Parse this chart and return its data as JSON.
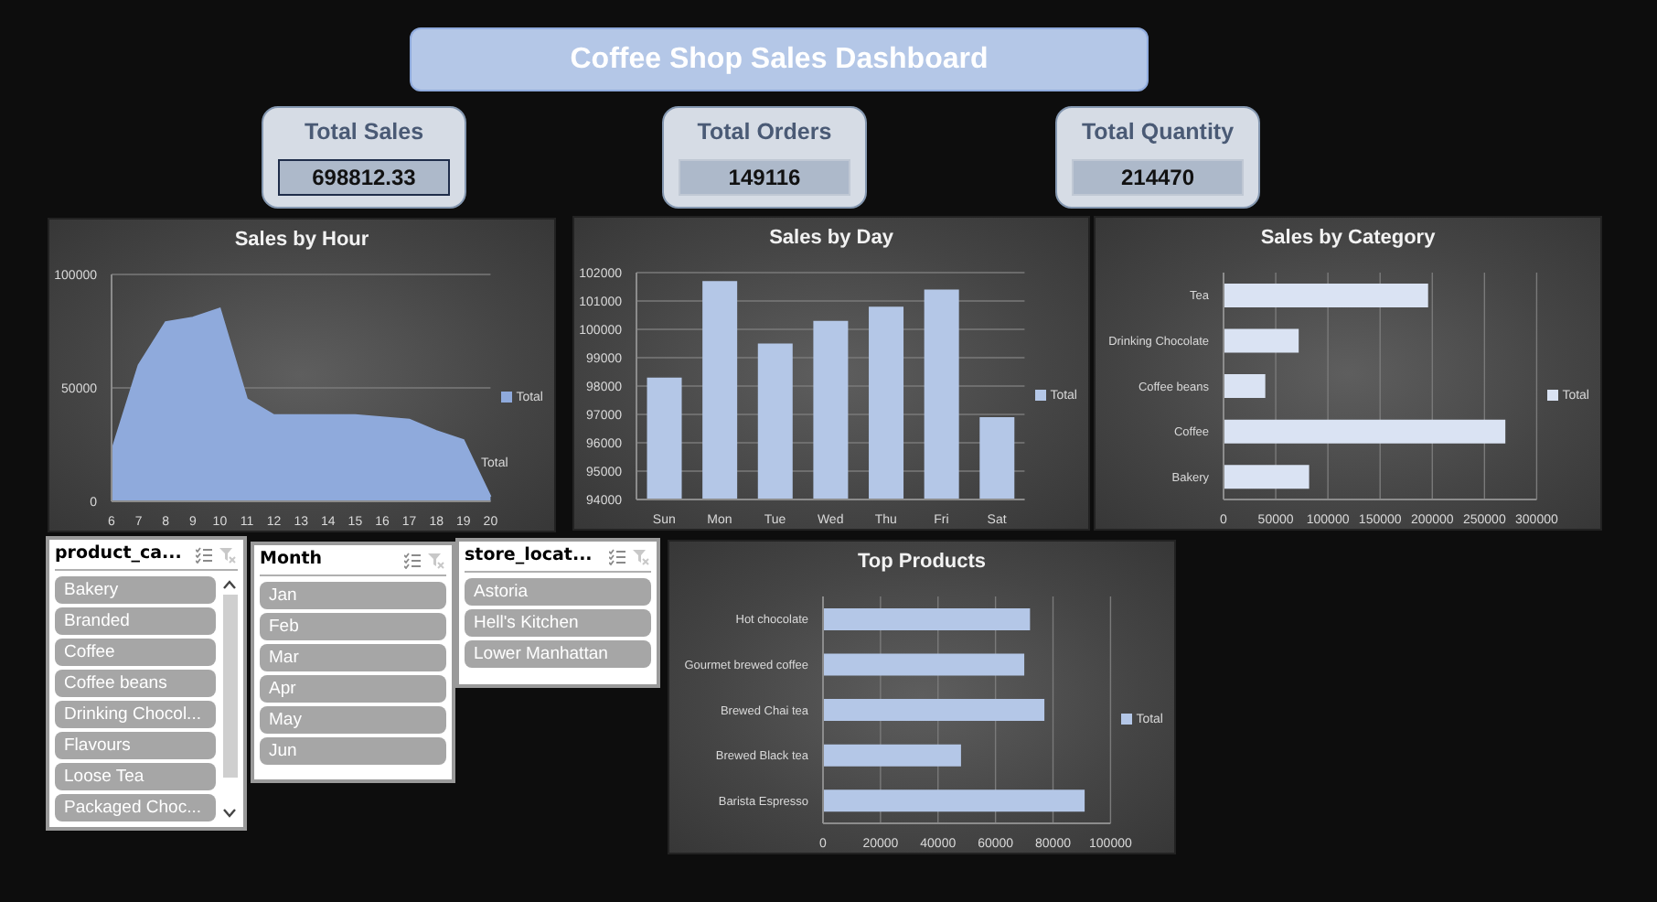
{
  "chart_data": [
    {
      "type": "other",
      "title": "Coffee Shop Sales Dashboard"
    },
    {
      "type": "other",
      "title": "Total Sales",
      "annotations": [
        "698812.33"
      ]
    },
    {
      "type": "other",
      "title": "Total Orders",
      "annotations": [
        "149116"
      ]
    },
    {
      "type": "other",
      "title": "Total Quantity",
      "annotations": [
        "214470"
      ]
    },
    {
      "type": "area",
      "title": "Sales by Hour",
      "categories": [
        "6",
        "7",
        "8",
        "9",
        "10",
        "11",
        "12",
        "13",
        "14",
        "15",
        "16",
        "17",
        "18",
        "19",
        "20"
      ],
      "series": [
        {
          "name": "Total",
          "color": "#8faadc",
          "values": [
            22000,
            60000,
            79000,
            81000,
            85000,
            45000,
            38000,
            38000,
            38000,
            38000,
            37000,
            36000,
            31000,
            27000,
            2000
          ]
        }
      ],
      "ylim": [
        0,
        100000
      ],
      "yticks": [
        0,
        50000,
        100000
      ],
      "grid": "y",
      "legend": "right",
      "annotations": [
        "Total"
      ]
    },
    {
      "type": "bar",
      "title": "Sales by Day",
      "categories": [
        "Sun",
        "Mon",
        "Tue",
        "Wed",
        "Thu",
        "Fri",
        "Sat"
      ],
      "series": [
        {
          "name": "Total",
          "color": "#b4c7e7",
          "values": [
            98300,
            101700,
            99500,
            100300,
            100800,
            101400,
            96900
          ]
        }
      ],
      "ylim": [
        94000,
        102000
      ],
      "yticks": [
        94000,
        95000,
        96000,
        97000,
        98000,
        99000,
        100000,
        101000,
        102000
      ],
      "grid": "y",
      "legend": "right"
    },
    {
      "type": "bar",
      "orientation": "horizontal",
      "title": "Sales by Category",
      "categories": [
        "Tea",
        "Drinking Chocolate",
        "Coffee beans",
        "Coffee",
        "Bakery"
      ],
      "series": [
        {
          "name": "Total",
          "color": "#dae3f3",
          "values": [
            196000,
            72000,
            40000,
            270000,
            82000
          ]
        }
      ],
      "xlim": [
        0,
        300000
      ],
      "xticks": [
        0,
        50000,
        100000,
        150000,
        200000,
        250000,
        300000
      ],
      "grid": "x",
      "legend": "right"
    },
    {
      "type": "other",
      "title": "product_ca...",
      "annotations": [
        "Bakery",
        "Branded",
        "Coffee",
        "Coffee beans",
        "Drinking Chocol...",
        "Flavours",
        "Loose Tea",
        "Packaged Choc..."
      ]
    },
    {
      "type": "other",
      "title": "Month",
      "annotations": [
        "Jan",
        "Feb",
        "Mar",
        "Apr",
        "May",
        "Jun"
      ]
    },
    {
      "type": "other",
      "title": "store_locat...",
      "annotations": [
        "Astoria",
        "Hell's Kitchen",
        "Lower Manhattan"
      ]
    },
    {
      "type": "bar",
      "orientation": "horizontal",
      "title": "Top Products",
      "categories": [
        "Hot chocolate",
        "Gourmet brewed coffee",
        "Brewed Chai tea",
        "Brewed Black tea",
        "Barista Espresso"
      ],
      "series": [
        {
          "name": "Total",
          "color": "#b4c7e7",
          "values": [
            72000,
            70000,
            77000,
            48000,
            91000
          ]
        }
      ],
      "xlim": [
        0,
        100000
      ],
      "xticks": [
        0,
        20000,
        40000,
        60000,
        80000,
        100000
      ],
      "grid": "x",
      "legend": "right"
    }
  ]
}
